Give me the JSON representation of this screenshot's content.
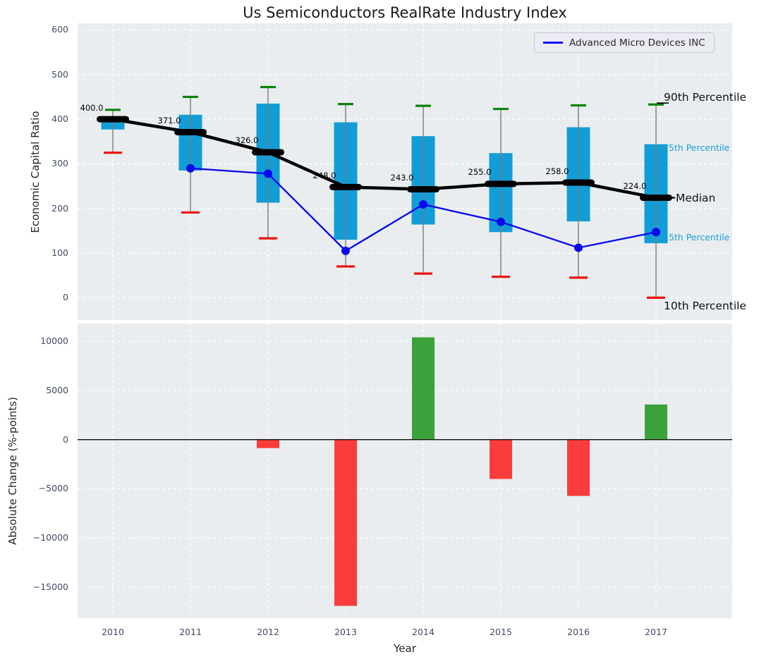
{
  "title": "Us Semiconductors RealRate Industry Index",
  "legend": {
    "label": "Advanced Micro Devices INC"
  },
  "right_annotations": {
    "p90": "90th Percentile",
    "p75": "75th Percentile",
    "median": "Median",
    "p25": "25th Percentile",
    "p10": "10th Percentile"
  },
  "colors": {
    "panel_bg": "#e9edf0",
    "grid": "#ffffff",
    "box_fill": "#129dd7",
    "whisker": "#7a7a7a",
    "p90_cap": "#0a840a",
    "p10_cap": "#eb1212",
    "median_line": "#000000",
    "amd_line": "#0808ee",
    "bar_positive": "#3ba23b",
    "bar_negative": "#fb3c3c",
    "percentile_label": "#18a0d8",
    "tick_label": "#3e4c63",
    "zero_line": "#111111"
  },
  "chart_data": [
    {
      "type": "boxplot+line",
      "panel": "top",
      "title": "Us Semiconductors RealRate Industry Index",
      "ylabel": "Economic Capital Ratio",
      "categories": [
        "2010",
        "2011",
        "2012",
        "2013",
        "2014",
        "2015",
        "2016",
        "2017"
      ],
      "ytick_labels": [
        "600",
        "500",
        "400",
        "300",
        "200",
        "100",
        "0"
      ],
      "ytick_values": [
        600,
        500,
        400,
        300,
        200,
        100,
        0
      ],
      "ylim": [
        -50,
        615
      ],
      "grid": true,
      "legend_position": "upper right",
      "series": [
        {
          "name": "90th Percentile",
          "values": [
            421,
            450,
            472,
            434,
            430,
            423,
            431,
            433
          ]
        },
        {
          "name": "75th Percentile",
          "values": [
            403,
            410,
            435,
            393,
            362,
            324,
            382,
            344
          ]
        },
        {
          "name": "Median",
          "values": [
            400,
            371,
            326,
            248,
            243,
            255,
            258,
            224
          ]
        },
        {
          "name": "25th Percentile",
          "values": [
            377,
            285,
            213,
            130,
            164,
            147,
            171,
            122
          ]
        },
        {
          "name": "10th Percentile",
          "values": [
            325,
            191,
            133,
            70,
            54,
            47,
            45,
            0
          ]
        },
        {
          "name": "Advanced Micro Devices INC",
          "values": [
            null,
            290,
            278,
            105,
            209,
            170,
            112,
            147
          ]
        }
      ],
      "median_labels": [
        "400.0",
        "371.0",
        "326.0",
        "248.0",
        "243.0",
        "255.0",
        "258.0",
        "224.0"
      ]
    },
    {
      "type": "bar",
      "panel": "bottom",
      "xlabel": "Year",
      "ylabel": "Absolute Change (%-points)",
      "categories": [
        "2010",
        "2011",
        "2012",
        "2013",
        "2014",
        "2015",
        "2016",
        "2017"
      ],
      "values": [
        null,
        null,
        -860,
        -16900,
        10400,
        -4000,
        -5720,
        3570
      ],
      "ytick_labels": [
        "10000",
        "5000",
        "0",
        "−5000",
        "−10000",
        "−15000"
      ],
      "ytick_values": [
        10000,
        5000,
        0,
        -5000,
        -10000,
        -15000
      ],
      "ylim": [
        -18150,
        11800
      ],
      "grid": true
    }
  ]
}
